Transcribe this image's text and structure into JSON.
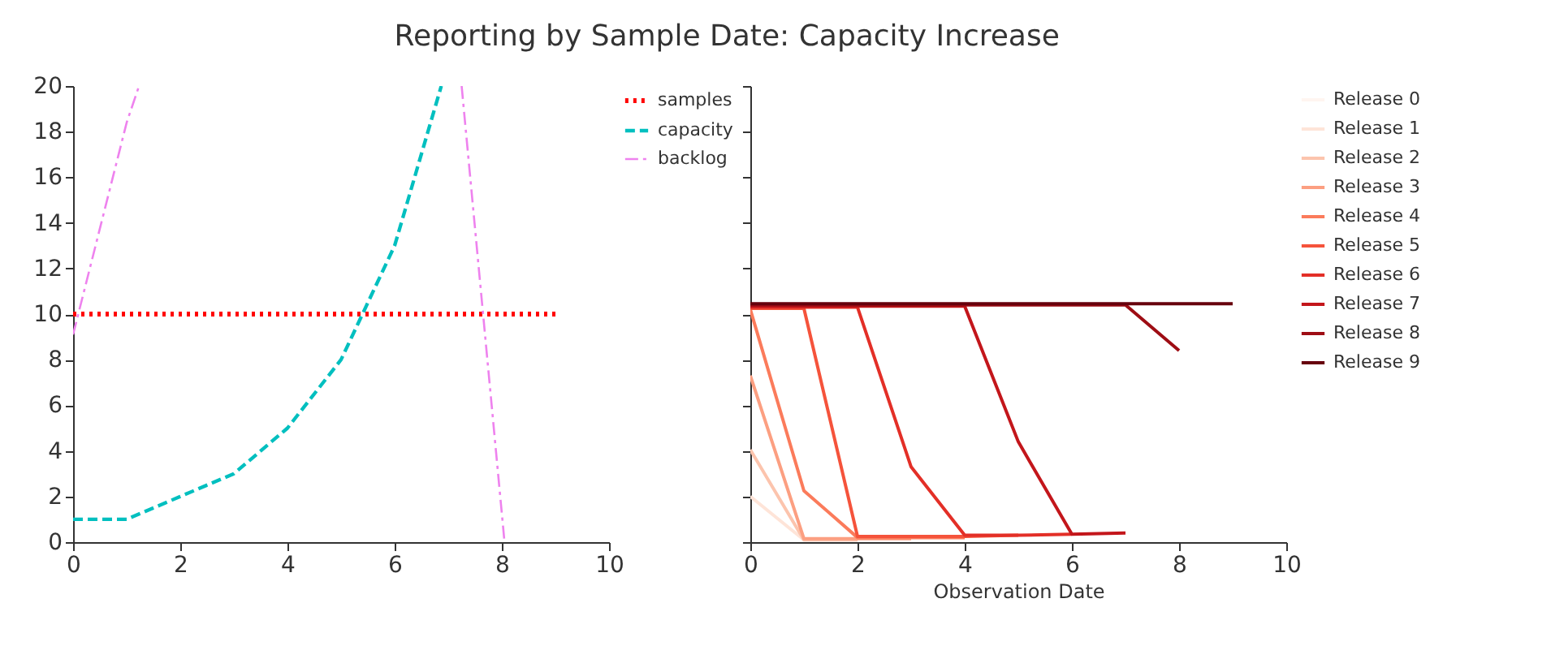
{
  "chart_data": [
    {
      "type": "line",
      "title": "Reporting by Sample Date: Capacity Increase",
      "xlim": [
        0,
        10
      ],
      "xticks": [
        0,
        2,
        4,
        6,
        8,
        10
      ],
      "ylim": [
        0,
        20
      ],
      "yticks": [
        0,
        2,
        4,
        6,
        8,
        10,
        12,
        14,
        16,
        18,
        20
      ],
      "legend": "right",
      "grid": false,
      "series": [
        {
          "name": "samples",
          "color": "#ff0000",
          "line_style": "dotted",
          "x": [
            0,
            1,
            2,
            3,
            4,
            5,
            6,
            7,
            8,
            9
          ],
          "values": [
            10,
            10,
            10,
            10,
            10,
            10,
            10,
            10,
            10,
            10
          ]
        },
        {
          "name": "capacity",
          "color": "#00bfbf",
          "line_style": "dashed",
          "x": [
            0,
            1,
            2,
            3,
            4,
            5,
            6,
            6.87
          ],
          "values": [
            1,
            1,
            2,
            3,
            5,
            8,
            13,
            20
          ]
        },
        {
          "name": "backlog",
          "color": "#ee82ee",
          "line_style": "dashdot",
          "x": [
            0,
            1,
            1.23,
            4,
            7.25,
            8.05
          ],
          "values": [
            9.1,
            18.4,
            20,
            null,
            20,
            0
          ]
        }
      ]
    },
    {
      "type": "line",
      "xlabel": "Observation Date",
      "xlim": [
        0,
        10
      ],
      "xticks": [
        0,
        2,
        4,
        6,
        8,
        10
      ],
      "ylim": [
        0,
        20
      ],
      "yticks": [
        0,
        2,
        4,
        6,
        8,
        10,
        12,
        14,
        16,
        18,
        20
      ],
      "tick_labels": "x",
      "legend": "right",
      "grid": false,
      "series": [
        {
          "name": "Release 0",
          "color": "#fff5f0",
          "line_style": "solid"
        },
        {
          "name": "Release 1",
          "color": "#fee4d8",
          "line_style": "solid",
          "x": [
            0,
            1
          ],
          "values": [
            2.0,
            0.1
          ]
        },
        {
          "name": "Release 2",
          "color": "#fcc4ad",
          "line_style": "solid",
          "x": [
            0,
            1,
            2
          ],
          "values": [
            4.05,
            0.1,
            0.1
          ]
        },
        {
          "name": "Release 3",
          "color": "#fc9f81",
          "line_style": "solid",
          "x": [
            0,
            1,
            2,
            3
          ],
          "values": [
            7.3,
            0.15,
            0.15,
            0.15
          ]
        },
        {
          "name": "Release 4",
          "color": "#fb7b5b",
          "line_style": "solid",
          "x": [
            0,
            1,
            2,
            3,
            4
          ],
          "values": [
            10.2,
            2.25,
            0.2,
            0.2,
            0.2
          ]
        },
        {
          "name": "Release 5",
          "color": "#f5533b",
          "line_style": "solid",
          "x": [
            0,
            1,
            2,
            3,
            4,
            5
          ],
          "values": [
            10.25,
            10.25,
            0.25,
            0.25,
            0.25,
            0.3
          ]
        },
        {
          "name": "Release 6",
          "color": "#e32f27",
          "line_style": "solid",
          "x": [
            0,
            1,
            2,
            3,
            4,
            5,
            6
          ],
          "values": [
            10.3,
            10.3,
            10.3,
            3.3,
            0.3,
            0.3,
            0.35
          ]
        },
        {
          "name": "Release 7",
          "color": "#c3161b",
          "line_style": "solid",
          "x": [
            0,
            1,
            2,
            3,
            4,
            5,
            6,
            7
          ],
          "values": [
            10.35,
            10.35,
            10.35,
            10.35,
            10.35,
            4.4,
            0.35,
            0.4
          ]
        },
        {
          "name": "Release 8",
          "color": "#9e0d14",
          "line_style": "solid",
          "x": [
            0,
            1,
            2,
            3,
            4,
            5,
            6,
            7,
            8
          ],
          "values": [
            10.4,
            10.4,
            10.4,
            10.4,
            10.4,
            10.4,
            10.4,
            10.4,
            8.4
          ]
        },
        {
          "name": "Release 9",
          "color": "#67000d",
          "line_style": "solid",
          "x": [
            0,
            1,
            2,
            3,
            4,
            5,
            6,
            7,
            8,
            9
          ],
          "values": [
            10.45,
            10.45,
            10.45,
            10.45,
            10.45,
            10.45,
            10.45,
            10.45,
            10.45,
            10.45
          ]
        }
      ]
    }
  ]
}
